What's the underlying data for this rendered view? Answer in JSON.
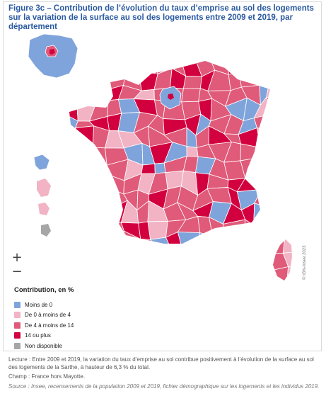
{
  "title": "Figure 3c – Contribution de l’évolution du taux d’emprise au sol des logements sur la variation de la surface au sol des logements entre 2009 et 2019, par département",
  "credit": "© IGN-Insee 2023",
  "zoom": {
    "in": "+",
    "out": "−"
  },
  "legend": {
    "title": "Contribution, en %",
    "items": [
      {
        "label": "Moins de 0",
        "color": "#7fa4db"
      },
      {
        "label": "De 0 à moins de 4",
        "color": "#f2b3c4"
      },
      {
        "label": "De 4 à moins de 14",
        "color": "#e05a7a"
      },
      {
        "label": "14 ou plus",
        "color": "#d3003f"
      },
      {
        "label": "Non disponible",
        "color": "#a6a6a6"
      }
    ]
  },
  "notes": {
    "lecture": "Lecture : Entre 2009 et 2019, la variation du taux d’emprise au sol contribue positivement à l’évolution de la surface au sol des logements de la Sarthe, à hauteur de 6,3 % du total.",
    "champ": "Champ : France hors Mayotte.",
    "source": "Source : Insee, recensements de la population 2009 et 2019, fichier démographique sur les logements et les individus 2019."
  }
}
